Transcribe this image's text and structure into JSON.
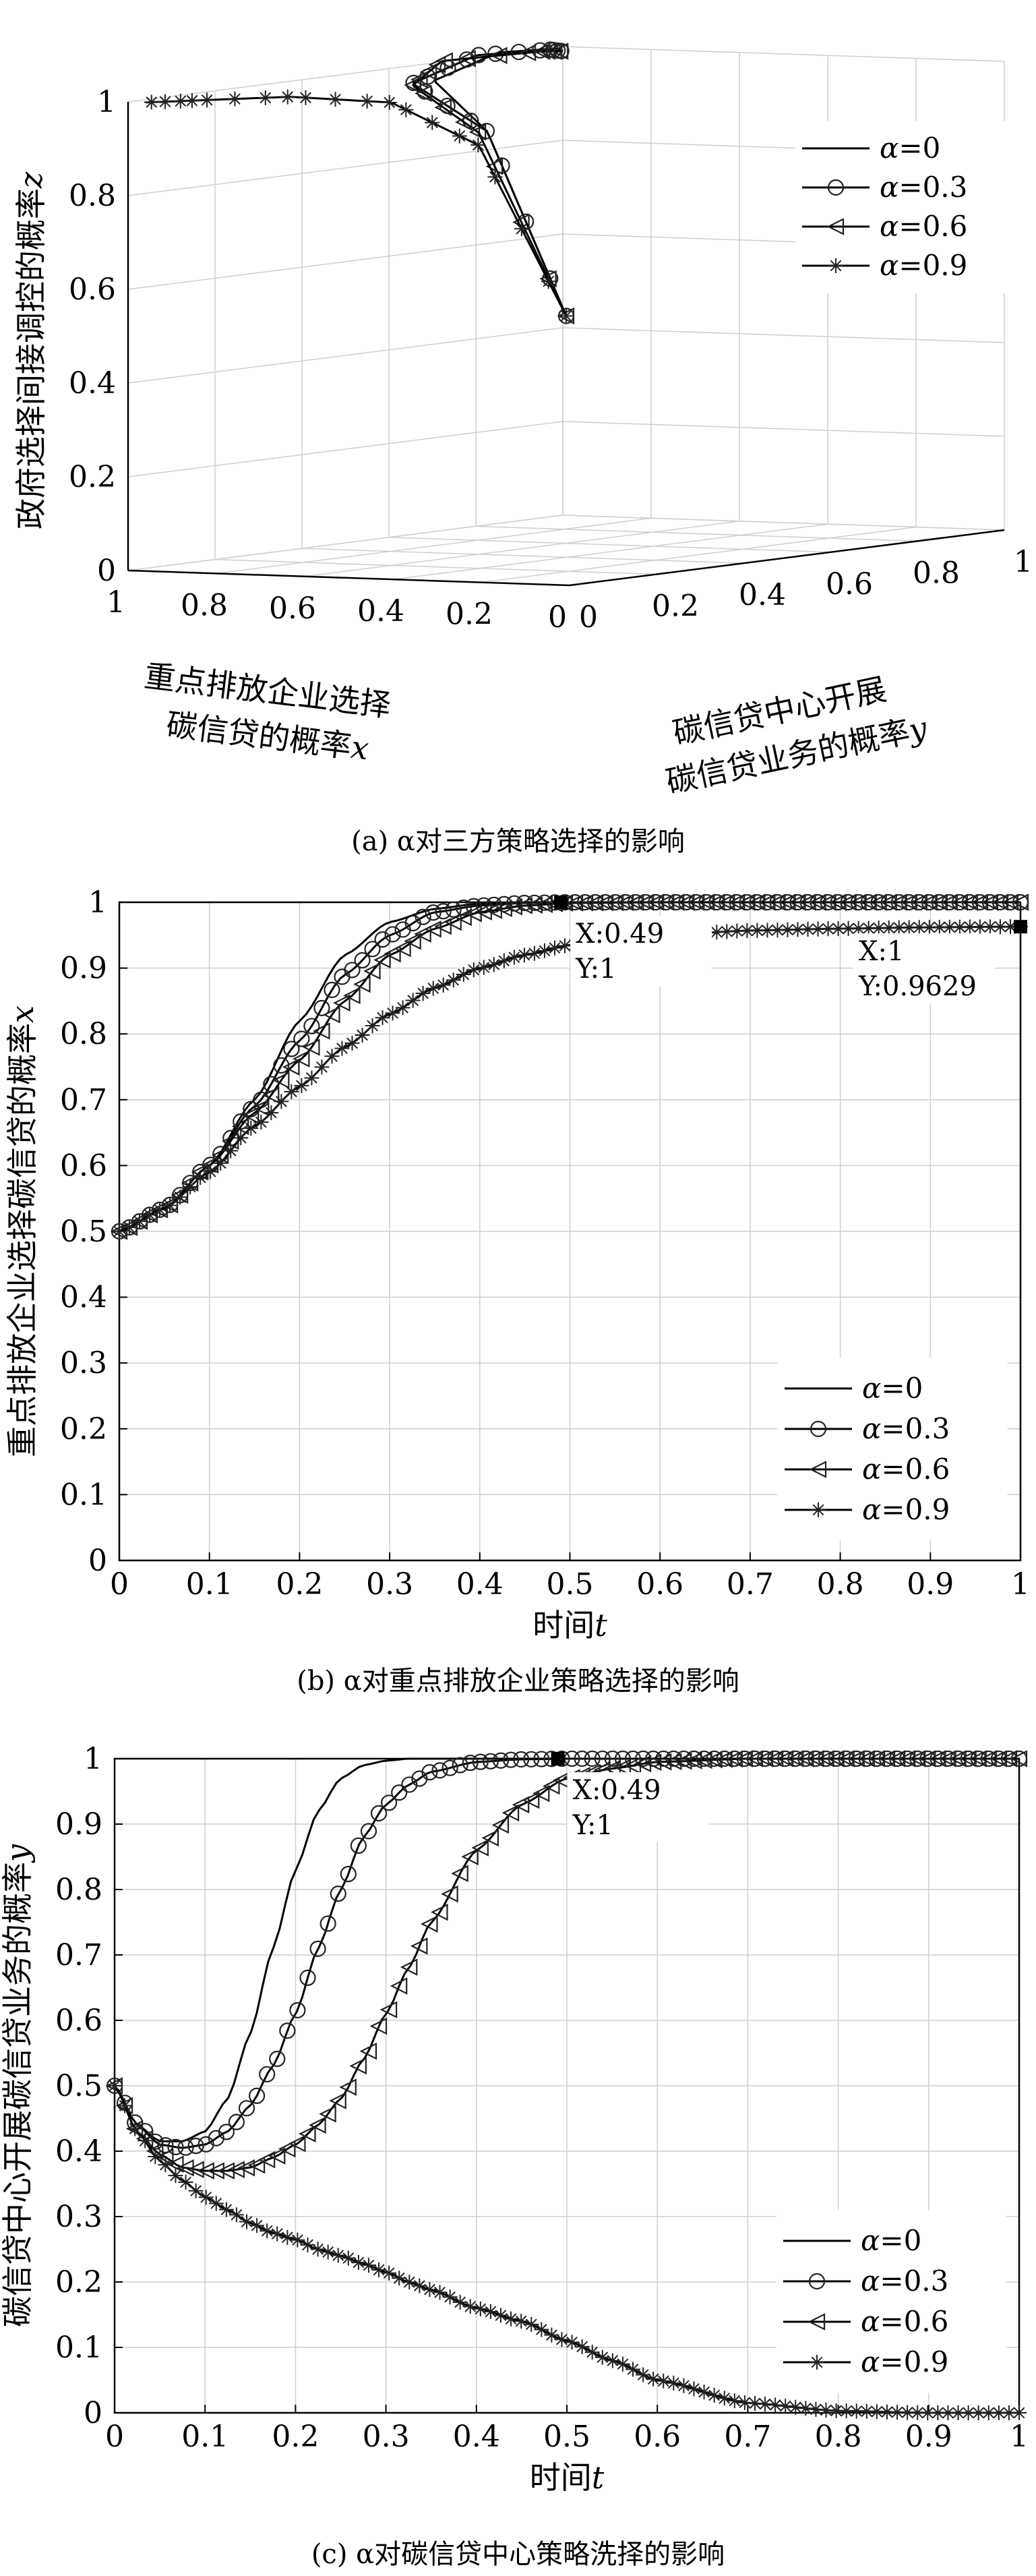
{
  "figure": {
    "captions": [
      "(a) α对三方策略选择的影响",
      "(b) α对重点排放企业策略选择的影响",
      "(c) α对碳信贷中心策略洗择的影响"
    ]
  },
  "chart_data": [
    {
      "id": "a",
      "type": "line",
      "projection": "3d",
      "zlabel": "政府选择间接调控的概率z",
      "xlabel_lines": [
        "重点排放企业选择",
        "碳信贷的概率x"
      ],
      "ylabel_lines": [
        "碳信贷中心开展",
        "碳信贷业务的概率y"
      ],
      "xlim": [
        0,
        1
      ],
      "ylim": [
        0,
        1
      ],
      "zlim": [
        0,
        1
      ],
      "z_ticks": [
        "0",
        "0.2",
        "0.4",
        "0.6",
        "0.8",
        "1"
      ],
      "x_ticks": [
        "0",
        "0.2",
        "0.4",
        "0.6",
        "0.8",
        "1"
      ],
      "y_ticks": [
        "0",
        "0.2",
        "0.4",
        "0.6",
        "0.8",
        "1"
      ],
      "grid": true,
      "legend_position": "top-right",
      "series": [
        {
          "name": "α=0",
          "marker": "none",
          "x": [
            0.5,
            0.6,
            0.75,
            0.9,
            0.98,
            1.0
          ],
          "y": [
            0.5,
            0.42,
            0.45,
            0.75,
            0.97,
            1.0
          ],
          "z": [
            0.5,
            0.9,
            1.0,
            1.02,
            1.0,
            0.99
          ]
        },
        {
          "name": "α=0.3",
          "marker": "circle",
          "x": [
            0.5,
            0.6,
            0.75,
            0.9,
            0.98,
            1.0
          ],
          "y": [
            0.5,
            0.42,
            0.4,
            0.7,
            0.95,
            1.0
          ],
          "z": [
            0.5,
            0.9,
            1.0,
            1.02,
            1.0,
            0.99
          ]
        },
        {
          "name": "α=0.6",
          "marker": "triangle-left",
          "x": [
            0.5,
            0.6,
            0.72,
            0.88,
            0.97,
            1.0
          ],
          "y": [
            0.5,
            0.4,
            0.37,
            0.6,
            0.92,
            1.0
          ],
          "z": [
            0.5,
            0.9,
            1.0,
            1.02,
            1.0,
            0.99
          ]
        },
        {
          "name": "α=0.9",
          "marker": "star",
          "x": [
            0.5,
            0.55,
            0.65,
            0.78,
            0.9,
            0.96
          ],
          "y": [
            0.5,
            0.35,
            0.25,
            0.15,
            0.05,
            0.0
          ],
          "z": [
            0.5,
            0.88,
            0.98,
            1.0,
            1.0,
            1.0
          ]
        }
      ]
    },
    {
      "id": "b",
      "type": "line",
      "xlabel": "时间t",
      "ylabel": "重点排放企业选择碳信贷的概率x",
      "xlim": [
        0,
        1
      ],
      "ylim": [
        0,
        1
      ],
      "x_ticks": [
        "0",
        "0.1",
        "0.2",
        "0.3",
        "0.4",
        "0.5",
        "0.6",
        "0.7",
        "0.8",
        "0.9",
        "1"
      ],
      "y_ticks": [
        "0",
        "0.1",
        "0.2",
        "0.3",
        "0.4",
        "0.5",
        "0.6",
        "0.7",
        "0.8",
        "0.9",
        "1"
      ],
      "grid": true,
      "legend_position": "bottom-right",
      "x": [
        0,
        0.05,
        0.1,
        0.15,
        0.2,
        0.25,
        0.3,
        0.35,
        0.4,
        0.45,
        0.5,
        0.6,
        0.7,
        0.8,
        0.9,
        1.0
      ],
      "series": [
        {
          "name": "α=0",
          "marker": "none",
          "values": [
            0.5,
            0.535,
            0.6,
            0.7,
            0.82,
            0.92,
            0.97,
            0.99,
            0.998,
            1,
            1,
            1,
            1,
            1,
            1,
            1
          ]
        },
        {
          "name": "α=0.3",
          "marker": "circle",
          "values": [
            0.5,
            0.535,
            0.6,
            0.69,
            0.79,
            0.89,
            0.95,
            0.985,
            0.995,
            0.999,
            1,
            1,
            1,
            1,
            1,
            1
          ]
        },
        {
          "name": "α=0.6",
          "marker": "triangle-left",
          "values": [
            0.5,
            0.535,
            0.6,
            0.68,
            0.76,
            0.85,
            0.92,
            0.96,
            0.985,
            0.995,
            0.999,
            1,
            1,
            1,
            1,
            1
          ]
        },
        {
          "name": "α=0.9",
          "marker": "star",
          "values": [
            0.5,
            0.535,
            0.59,
            0.66,
            0.72,
            0.78,
            0.83,
            0.87,
            0.9,
            0.92,
            0.935,
            0.95,
            0.957,
            0.96,
            0.962,
            0.963
          ]
        }
      ],
      "annotations": [
        {
          "x": 0.49,
          "y": 1,
          "label_x": "X:0.49",
          "label_y": "Y:1",
          "place": "below-right"
        },
        {
          "x": 1,
          "y": 0.9629,
          "label_x": "X:1",
          "label_y": "Y:0.9629",
          "place": "below-left"
        }
      ]
    },
    {
      "id": "c",
      "type": "line",
      "xlabel": "时间t",
      "ylabel": "碳信贷中心开展碳信贷业务的概率y",
      "xlim": [
        0,
        1
      ],
      "ylim": [
        0,
        1
      ],
      "x_ticks": [
        "0",
        "0.1",
        "0.2",
        "0.3",
        "0.4",
        "0.5",
        "0.6",
        "0.7",
        "0.8",
        "0.9",
        "1"
      ],
      "y_ticks": [
        "0",
        "0.1",
        "0.2",
        "0.3",
        "0.4",
        "0.5",
        "0.6",
        "0.7",
        "0.8",
        "0.9",
        "1"
      ],
      "grid": true,
      "legend_position": "bottom-right",
      "x": [
        0,
        0.025,
        0.05,
        0.075,
        0.1,
        0.125,
        0.15,
        0.175,
        0.2,
        0.225,
        0.25,
        0.275,
        0.3,
        0.325,
        0.35,
        0.4,
        0.45,
        0.5,
        0.55,
        0.6,
        0.7,
        0.8,
        0.9,
        1.0
      ],
      "series": [
        {
          "name": "α=0",
          "marker": "none",
          "values": [
            0.5,
            0.44,
            0.415,
            0.415,
            0.43,
            0.48,
            0.58,
            0.71,
            0.83,
            0.92,
            0.97,
            0.99,
            0.997,
            1,
            1,
            1,
            1,
            1,
            1,
            1,
            1,
            1,
            1,
            1
          ]
        },
        {
          "name": "α=0.3",
          "marker": "circle",
          "values": [
            0.5,
            0.44,
            0.41,
            0.405,
            0.41,
            0.43,
            0.47,
            0.53,
            0.61,
            0.71,
            0.8,
            0.88,
            0.93,
            0.96,
            0.98,
            0.995,
            0.999,
            1,
            1,
            1,
            1,
            1,
            1,
            1
          ]
        },
        {
          "name": "α=0.6",
          "marker": "triangle-left",
          "values": [
            0.5,
            0.43,
            0.395,
            0.375,
            0.37,
            0.37,
            0.375,
            0.39,
            0.41,
            0.44,
            0.48,
            0.54,
            0.61,
            0.68,
            0.75,
            0.86,
            0.93,
            0.97,
            0.985,
            0.995,
            1,
            1,
            1,
            1
          ]
        },
        {
          "name": "α=0.9",
          "marker": "star",
          "values": [
            0.5,
            0.43,
            0.385,
            0.355,
            0.33,
            0.31,
            0.29,
            0.275,
            0.265,
            0.25,
            0.24,
            0.228,
            0.215,
            0.2,
            0.188,
            0.16,
            0.14,
            0.11,
            0.08,
            0.05,
            0.015,
            0.003,
            0.0,
            0.0
          ]
        }
      ],
      "annotations": [
        {
          "x": 0.49,
          "y": 1,
          "label_x": "X:0.49",
          "label_y": "Y:1",
          "place": "below-right"
        }
      ]
    }
  ]
}
